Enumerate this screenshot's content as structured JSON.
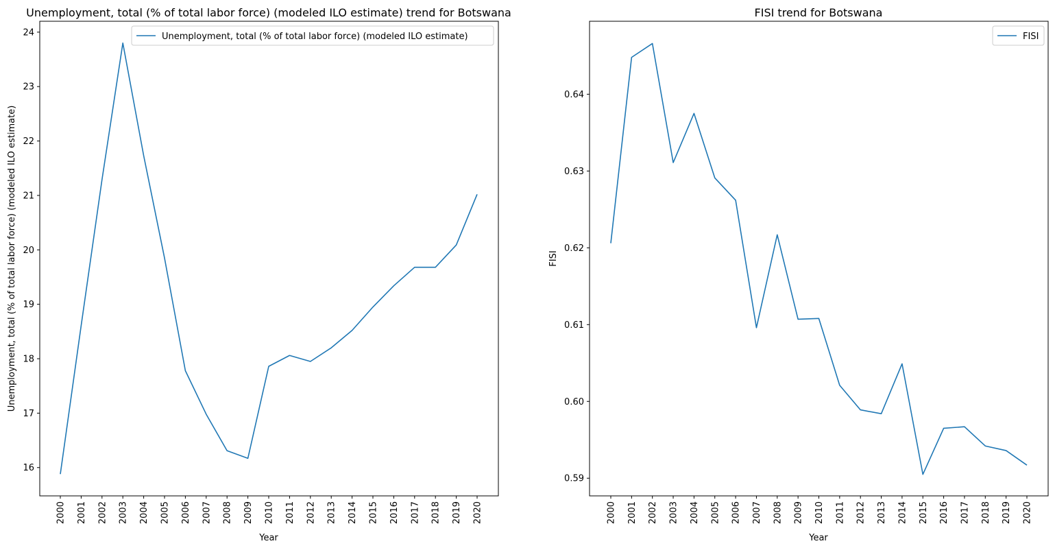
{
  "colors": {
    "line": "#1f77b4",
    "axis": "#000000",
    "background": "#ffffff",
    "legend_border": "#cccccc"
  },
  "chart_data": [
    {
      "type": "line",
      "title": "Unemployment, total (% of total labor force) (modeled ILO estimate) trend for Botswana",
      "xlabel": "Year",
      "ylabel": "Unemployment, total (% of total labor force) (modeled ILO estimate)",
      "x": [
        "2000",
        "2001",
        "2002",
        "2003",
        "2004",
        "2005",
        "2006",
        "2007",
        "2008",
        "2009",
        "2010",
        "2011",
        "2012",
        "2013",
        "2014",
        "2015",
        "2016",
        "2017",
        "2018",
        "2019",
        "2020"
      ],
      "series": [
        {
          "name": "Unemployment, total (% of total labor force) (modeled ILO estimate)",
          "values": [
            15.88,
            18.61,
            21.29,
            23.8,
            21.73,
            19.85,
            17.78,
            16.98,
            16.31,
            16.17,
            17.86,
            18.06,
            17.95,
            18.2,
            18.52,
            18.95,
            19.34,
            19.68,
            19.68,
            20.09,
            21.02
          ]
        }
      ],
      "yticks": [
        16,
        17,
        18,
        19,
        20,
        21,
        22,
        23,
        24
      ],
      "ylim": [
        15.48,
        24.2
      ],
      "grid": false,
      "legend_position": "top-right"
    },
    {
      "type": "line",
      "title": "FISI trend for Botswana",
      "xlabel": "Year",
      "ylabel": "FISI",
      "x": [
        "2000",
        "2001",
        "2002",
        "2003",
        "2004",
        "2005",
        "2006",
        "2007",
        "2008",
        "2009",
        "2010",
        "2011",
        "2012",
        "2013",
        "2014",
        "2015",
        "2016",
        "2017",
        "2018",
        "2019",
        "2020"
      ],
      "series": [
        {
          "name": "FISI",
          "values": [
            0.6206,
            0.6448,
            0.6466,
            0.6311,
            0.6375,
            0.6291,
            0.6262,
            0.6096,
            0.6217,
            0.6107,
            0.6108,
            0.6021,
            0.5989,
            0.5984,
            0.6049,
            0.5905,
            0.5965,
            0.5967,
            0.5942,
            0.5936,
            0.5917
          ]
        }
      ],
      "yticks": [
        0.59,
        0.6,
        0.61,
        0.62,
        0.63,
        0.64
      ],
      "ytick_labels": [
        "0.59",
        "0.60",
        "0.61",
        "0.62",
        "0.63",
        "0.64"
      ],
      "ylim": [
        0.5877,
        0.6495
      ],
      "grid": false,
      "legend_position": "top-right"
    }
  ]
}
